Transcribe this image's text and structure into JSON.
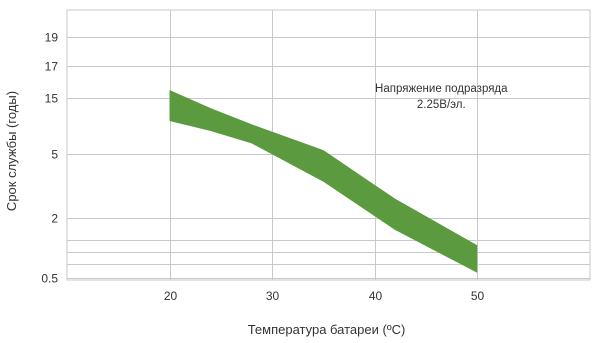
{
  "chart_data": {
    "type": "area",
    "xlabel": "Температура батареи  (ºC)",
    "ylabel": "Срок службы (годы)",
    "x_ticks": [
      20,
      30,
      40,
      50
    ],
    "y_ticks": [
      {
        "label": "0.5",
        "value": 0.5
      },
      {
        "label": "2",
        "value": 2
      },
      {
        "label": "5",
        "value": 5
      },
      {
        "label": "15",
        "value": 15
      },
      {
        "label": "17",
        "value": 17
      },
      {
        "label": "19",
        "value": 19
      }
    ],
    "extra_gridlines": [
      0.85,
      1.15,
      1.45
    ],
    "xlim": [
      10,
      61
    ],
    "grid": true,
    "band": {
      "color": "#5b9a3f",
      "upper": [
        {
          "x": 20,
          "y": 15.5
        },
        {
          "x": 24,
          "y": 13.2
        },
        {
          "x": 28,
          "y": 10.3
        },
        {
          "x": 35,
          "y": 5.7
        },
        {
          "x": 42,
          "y": 2.9
        },
        {
          "x": 50,
          "y": 1.32
        }
      ],
      "lower": [
        {
          "x": 20,
          "y": 10.9
        },
        {
          "x": 24,
          "y": 9.1
        },
        {
          "x": 28,
          "y": 6.9
        },
        {
          "x": 35,
          "y": 3.7
        },
        {
          "x": 42,
          "y": 1.7
        },
        {
          "x": 50,
          "y": 0.63
        }
      ]
    },
    "annotation": {
      "line1": "Напряжение подразряда",
      "line2": "2.25В/эл.",
      "x": 46.5,
      "y": 15
    }
  }
}
